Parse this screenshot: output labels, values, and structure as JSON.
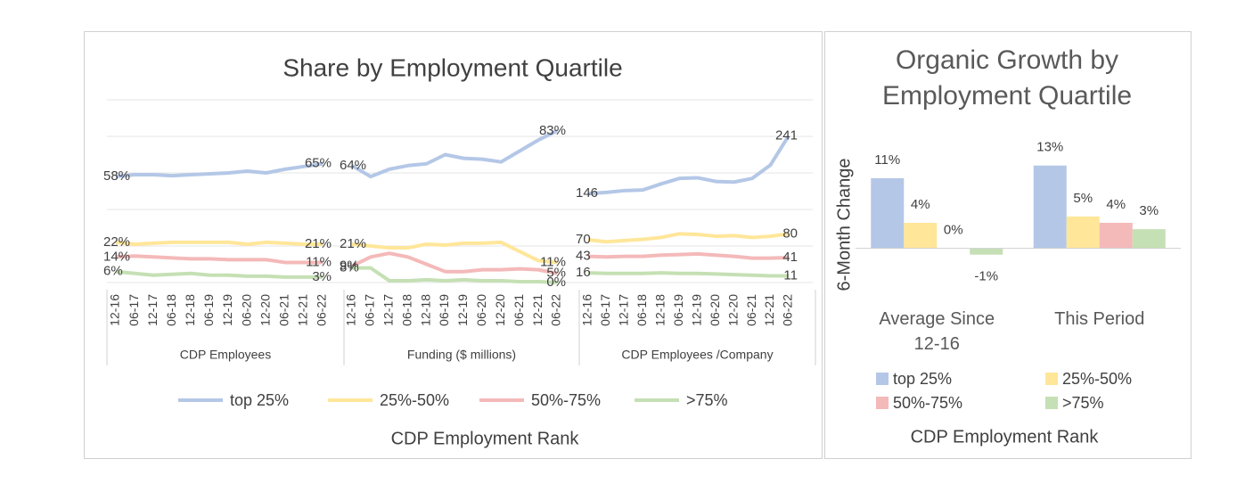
{
  "chart_data": [
    {
      "type": "line",
      "title": "Share by Employment Quartile",
      "x_title": "CDP Employment Rank",
      "categories": [
        "12-16",
        "06-17",
        "12-17",
        "06-18",
        "12-18",
        "06-19",
        "12-19",
        "06-20",
        "12-20",
        "06-21",
        "12-21",
        "06-22"
      ],
      "series": [
        {
          "name": "top 25%",
          "color": "#b4c7e7"
        },
        {
          "name": "25%-50%",
          "color": "#ffe699"
        },
        {
          "name": "50%-75%",
          "color": "#f4b9b9"
        },
        {
          "name": ">75%",
          "color": "#c5e0b4"
        }
      ],
      "grid": true,
      "panels": [
        {
          "label": "CDP Employees",
          "ylim": [
            0,
            100
          ],
          "yticks": [
            0,
            20,
            40,
            60,
            80,
            100
          ],
          "values": [
            [
              58,
              59,
              59,
              58.5,
              59,
              59.5,
              60,
              61,
              60,
              62,
              63.5,
              65
            ],
            [
              22,
              21,
              21.5,
              22,
              22,
              22,
              22,
              21,
              22,
              21.5,
              21,
              21
            ],
            [
              14,
              14.5,
              14,
              13.5,
              13,
              13,
              12.5,
              12.5,
              12.5,
              11,
              11,
              11
            ],
            [
              6,
              5,
              4,
              4.5,
              5,
              4,
              4,
              3.5,
              3.5,
              3,
              3,
              3
            ]
          ],
          "value_labels": [
            [
              "58%",
              null,
              null,
              null,
              null,
              null,
              null,
              null,
              null,
              null,
              null,
              "65%"
            ],
            [
              "22%",
              null,
              null,
              null,
              null,
              null,
              null,
              null,
              null,
              null,
              null,
              "21%"
            ],
            [
              "14%",
              null,
              null,
              null,
              null,
              null,
              null,
              null,
              null,
              null,
              null,
              "11%"
            ],
            [
              "6%",
              null,
              null,
              null,
              null,
              null,
              null,
              null,
              null,
              null,
              null,
              "3%"
            ]
          ]
        },
        {
          "label": "Funding ($ millions)",
          "ylim": [
            0,
            100
          ],
          "values": [
            [
              64,
              58,
              62,
              64,
              65,
              70,
              68,
              67.5,
              66,
              72,
              78,
              83
            ],
            [
              21,
              20,
              19,
              19,
              21,
              20.5,
              21.5,
              21.5,
              22,
              17,
              12,
              11
            ],
            [
              9,
              14,
              16,
              14,
              10,
              6,
              6,
              7,
              7,
              7.5,
              7,
              5
            ],
            [
              8,
              8,
              1,
              1,
              1.5,
              1,
              1.5,
              1,
              1,
              0.5,
              0.5,
              0
            ]
          ],
          "value_labels": [
            [
              "64%",
              null,
              null,
              null,
              null,
              null,
              null,
              null,
              null,
              null,
              null,
              "83%"
            ],
            [
              "21%",
              null,
              null,
              null,
              null,
              null,
              null,
              null,
              null,
              null,
              null,
              "11%"
            ],
            [
              "9%",
              null,
              null,
              null,
              null,
              null,
              null,
              null,
              null,
              null,
              null,
              "5%"
            ],
            [
              "8%",
              null,
              null,
              null,
              null,
              null,
              null,
              null,
              null,
              null,
              null,
              "0%"
            ]
          ]
        },
        {
          "label": "CDP Employees /Company",
          "ylim": [
            0,
            300
          ],
          "values": [
            [
              146,
              148,
              151,
              152,
              162,
              171,
              172,
              166,
              165,
              171,
              193,
              241
            ],
            [
              70,
              67,
              69,
              71,
              74,
              80,
              79,
              76,
              77,
              74,
              76,
              80
            ],
            [
              43,
              42,
              43,
              43,
              45,
              46,
              47,
              45,
              43,
              40,
              40,
              41
            ],
            [
              16,
              15,
              15,
              15,
              16,
              15,
              15,
              14,
              13,
              12,
              11,
              11
            ]
          ]
        }
      ]
    },
    {
      "type": "bar",
      "title": "Organic Growth by Employment Quartile",
      "y_title": "6-Month Change",
      "x_title": "CDP Employment Rank",
      "categories": [
        "Average Since 12-16",
        "This Period"
      ],
      "ylim": [
        -3,
        18
      ],
      "series": [
        {
          "name": "top 25%",
          "color": "#b4c7e7",
          "values": [
            11,
            13
          ],
          "value_labels": [
            "11%",
            "13%"
          ]
        },
        {
          "name": "25%-50%",
          "color": "#ffe699",
          "values": [
            4,
            5
          ],
          "value_labels": [
            "4%",
            "5%"
          ]
        },
        {
          "name": "50%-75%",
          "color": "#f4b9b9",
          "values": [
            0,
            4
          ],
          "value_labels": [
            "0%",
            "4%"
          ]
        },
        {
          "name": ">75%",
          "color": "#c5e0b4",
          "values": [
            -1,
            3
          ],
          "value_labels": [
            "-1%",
            "3%"
          ]
        }
      ]
    }
  ]
}
